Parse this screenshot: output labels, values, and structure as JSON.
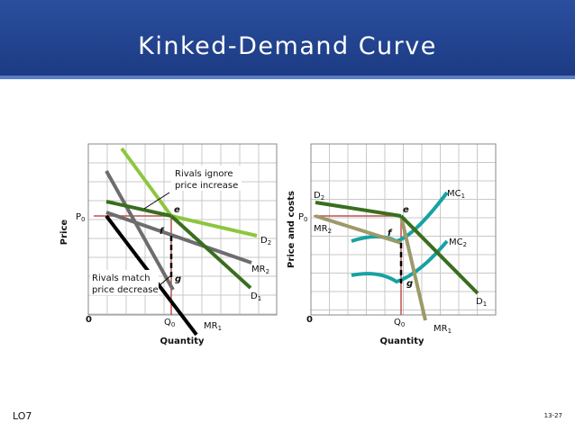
{
  "header": {
    "title": "Kinked-Demand Curve"
  },
  "left_diagram": {
    "y_axis_label": "Price",
    "x_axis_label": "Quantity",
    "origin": "0",
    "price_label": {
      "text": "P",
      "sub": "0"
    },
    "quantity_label": {
      "text": "Q",
      "sub": "0"
    },
    "points": [
      "e",
      "f",
      "g"
    ],
    "curves": [
      {
        "text": "D",
        "sub": "2"
      },
      {
        "text": "MR",
        "sub": "2"
      },
      {
        "text": "D",
        "sub": "1"
      },
      {
        "text": "MR",
        "sub": "1"
      }
    ],
    "annotations": [
      [
        "Rivals ignore",
        "price increase"
      ],
      [
        "Rivals match",
        "price decrease"
      ]
    ]
  },
  "right_diagram": {
    "y_axis_label": "Price and costs",
    "x_axis_label": "Quantity",
    "origin": "0",
    "price_label": {
      "text": "P",
      "sub": "0"
    },
    "quantity_label": {
      "text": "Q",
      "sub": "0"
    },
    "points": [
      "e",
      "f",
      "g"
    ],
    "curves": [
      {
        "text": "D",
        "sub": "2"
      },
      {
        "text": "MR",
        "sub": "2"
      },
      {
        "text": "MC",
        "sub": "1"
      },
      {
        "text": "MC",
        "sub": "2"
      },
      {
        "text": "D",
        "sub": "1"
      },
      {
        "text": "MR",
        "sub": "1"
      }
    ]
  },
  "footer": {
    "left": "LO7",
    "right": "13-27"
  }
}
